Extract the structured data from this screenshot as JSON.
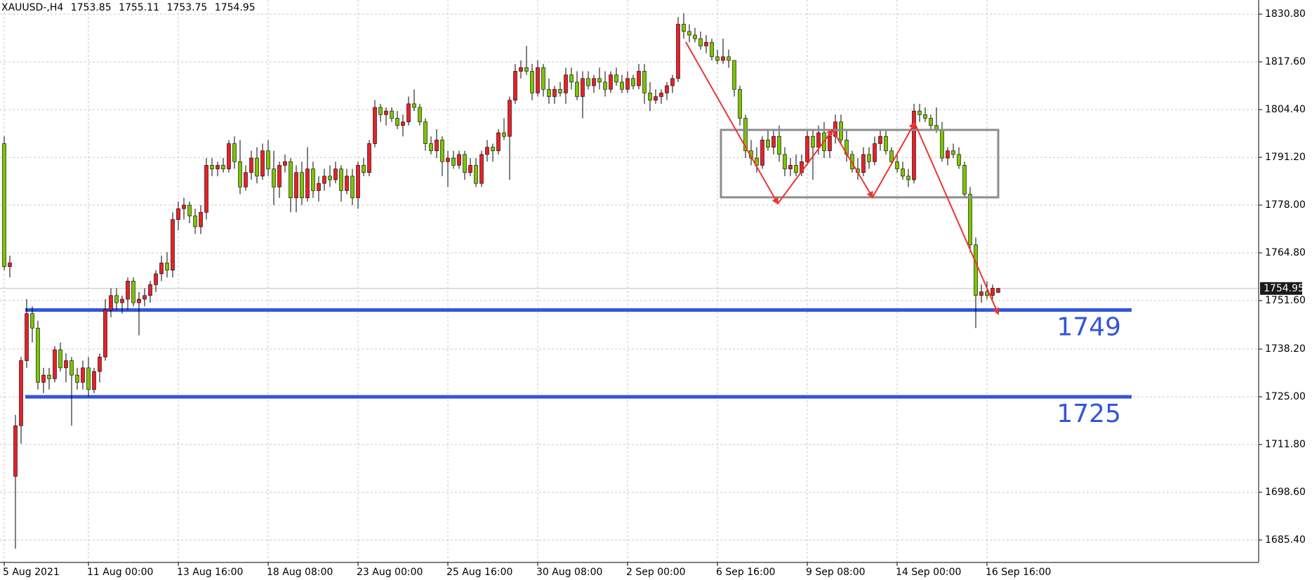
{
  "chart_data": {
    "type": "candlestick",
    "symbol": "XAUUSD-,H4",
    "up_color": "#e8202a",
    "down_color": "#7cc400",
    "level_color": "#3355dd",
    "grid": true,
    "ylim": [
      1679.2,
      1834.7
    ],
    "yticks": [
      {
        "value": 1830.8,
        "label": "1830.80"
      },
      {
        "value": 1817.6,
        "label": "1817.60"
      },
      {
        "value": 1804.4,
        "label": "1804.40"
      },
      {
        "value": 1791.2,
        "label": "1791.20"
      },
      {
        "value": 1778,
        "label": "1778.00"
      },
      {
        "value": 1764.8,
        "label": "1764.80"
      },
      {
        "value": 1751.6,
        "label": "1751.60"
      },
      {
        "value": 1738.2,
        "label": "1738.20"
      },
      {
        "value": 1725,
        "label": "1725.00"
      },
      {
        "value": 1711.8,
        "label": "1711.80"
      },
      {
        "value": 1698.6,
        "label": "1698.60"
      },
      {
        "value": 1685.4,
        "label": "1685.40"
      }
    ],
    "levels": [
      1749,
      1725
    ],
    "categories": [
      "5 Aug 2021",
      null,
      null,
      null,
      null,
      null,
      null,
      null,
      null,
      null,
      null,
      null,
      null,
      null,
      null,
      "11 Aug 00:00",
      null,
      null,
      null,
      null,
      null,
      null,
      null,
      null,
      null,
      null,
      null,
      null,
      null,
      null,
      null,
      "13 Aug 16:00",
      null,
      null,
      null,
      null,
      null,
      null,
      null,
      null,
      null,
      null,
      null,
      null,
      null,
      null,
      null,
      "18 Aug 08:00",
      null,
      null,
      null,
      null,
      null,
      null,
      null,
      null,
      null,
      null,
      null,
      null,
      null,
      null,
      null,
      "23 Aug 00:00",
      null,
      null,
      null,
      null,
      null,
      null,
      null,
      null,
      null,
      null,
      null,
      null,
      null,
      null,
      null,
      "25 Aug 16:00",
      null,
      null,
      null,
      null,
      null,
      null,
      null,
      null,
      null,
      null,
      null,
      null,
      null,
      null,
      null,
      "30 Aug 08:00",
      null,
      null,
      null,
      null,
      null,
      null,
      null,
      null,
      null,
      null,
      null,
      null,
      null,
      null,
      null,
      "2 Sep 00:00",
      null,
      null,
      null,
      null,
      null,
      null,
      null,
      null,
      null,
      null,
      null,
      null,
      null,
      null,
      null,
      "6 Sep 16:00",
      null,
      null,
      null,
      null,
      null,
      null,
      null,
      null,
      null,
      null,
      null,
      null,
      null,
      null,
      null,
      "9 Sep 08:00",
      null,
      null,
      null,
      null,
      null,
      null,
      null,
      null,
      null,
      null,
      null,
      null,
      null,
      null,
      null,
      "14 Sep 00:00",
      null,
      null,
      null,
      null,
      null,
      null,
      null,
      null,
      null,
      null,
      null,
      null,
      null,
      null,
      null,
      "16 Sep 16:00",
      null,
      null
    ],
    "ohlc": [
      [
        1795,
        1797,
        1760,
        1761
      ],
      [
        1761,
        1764,
        1758,
        1762
      ],
      [
        1703,
        1720,
        1683,
        1717
      ],
      [
        1717,
        1736,
        1712,
        1735
      ],
      [
        1735,
        1752,
        1733,
        1748
      ],
      [
        1748,
        1750,
        1740,
        1744
      ],
      [
        1744,
        1746,
        1727,
        1729
      ],
      [
        1729,
        1733,
        1726,
        1731
      ],
      [
        1731,
        1733,
        1727,
        1730
      ],
      [
        1730,
        1739,
        1729,
        1738
      ],
      [
        1738,
        1740,
        1732,
        1733
      ],
      [
        1733,
        1737,
        1729,
        1735
      ],
      [
        1735,
        1736,
        1717,
        1731
      ],
      [
        1731,
        1733,
        1727,
        1729
      ],
      [
        1729,
        1735,
        1727,
        1733
      ],
      [
        1733,
        1736,
        1725,
        1727
      ],
      [
        1727,
        1733,
        1726,
        1732
      ],
      [
        1732,
        1737,
        1729,
        1736
      ],
      [
        1736,
        1752,
        1735,
        1749
      ],
      [
        1749,
        1755,
        1747,
        1753
      ],
      [
        1753,
        1755,
        1749,
        1751
      ],
      [
        1751,
        1753,
        1748,
        1752
      ],
      [
        1752,
        1758,
        1749,
        1757
      ],
      [
        1757,
        1758,
        1750,
        1751
      ],
      [
        1751,
        1754,
        1742,
        1752
      ],
      [
        1752,
        1755,
        1750,
        1753
      ],
      [
        1753,
        1757,
        1751,
        1756
      ],
      [
        1756,
        1760,
        1754,
        1759
      ],
      [
        1759,
        1764,
        1757,
        1762
      ],
      [
        1762,
        1765,
        1758,
        1760
      ],
      [
        1760,
        1776,
        1758,
        1774
      ],
      [
        1774,
        1779,
        1771,
        1777
      ],
      [
        1777,
        1780,
        1774,
        1778
      ],
      [
        1778,
        1779,
        1773,
        1775
      ],
      [
        1775,
        1777,
        1770,
        1772
      ],
      [
        1772,
        1778,
        1770,
        1776
      ],
      [
        1776,
        1791,
        1774,
        1789
      ],
      [
        1789,
        1791,
        1786,
        1788
      ],
      [
        1788,
        1790,
        1786,
        1789
      ],
      [
        1789,
        1791,
        1787,
        1788
      ],
      [
        1788,
        1796,
        1787,
        1795
      ],
      [
        1795,
        1797,
        1788,
        1790
      ],
      [
        1790,
        1796,
        1781,
        1783
      ],
      [
        1783,
        1789,
        1782,
        1787
      ],
      [
        1787,
        1793,
        1785,
        1791
      ],
      [
        1791,
        1794,
        1784,
        1786
      ],
      [
        1786,
        1795,
        1785,
        1793
      ],
      [
        1793,
        1796,
        1786,
        1788
      ],
      [
        1788,
        1793,
        1778,
        1783
      ],
      [
        1783,
        1790,
        1780,
        1789
      ],
      [
        1789,
        1792,
        1787,
        1790
      ],
      [
        1790,
        1791,
        1776,
        1780
      ],
      [
        1780,
        1789,
        1776,
        1787
      ],
      [
        1787,
        1790,
        1778,
        1780
      ],
      [
        1780,
        1794,
        1779,
        1788
      ],
      [
        1788,
        1790,
        1780,
        1782
      ],
      [
        1782,
        1786,
        1779,
        1784
      ],
      [
        1784,
        1788,
        1782,
        1786
      ],
      [
        1786,
        1789,
        1783,
        1785
      ],
      [
        1785,
        1790,
        1784,
        1788
      ],
      [
        1788,
        1789,
        1779,
        1782
      ],
      [
        1782,
        1788,
        1781,
        1786
      ],
      [
        1786,
        1788,
        1778,
        1780
      ],
      [
        1780,
        1790,
        1777,
        1789
      ],
      [
        1789,
        1791,
        1786,
        1787
      ],
      [
        1787,
        1796,
        1786,
        1795
      ],
      [
        1795,
        1807,
        1794,
        1805
      ],
      [
        1805,
        1806,
        1801,
        1803
      ],
      [
        1803,
        1805,
        1800,
        1804
      ],
      [
        1804,
        1805,
        1801,
        1802
      ],
      [
        1802,
        1804,
        1799,
        1800
      ],
      [
        1800,
        1803,
        1797,
        1801
      ],
      [
        1801,
        1808,
        1800,
        1806
      ],
      [
        1806,
        1810,
        1804,
        1805
      ],
      [
        1805,
        1806,
        1800,
        1801
      ],
      [
        1801,
        1802,
        1793,
        1795
      ],
      [
        1795,
        1797,
        1792,
        1793
      ],
      [
        1793,
        1799,
        1791,
        1796
      ],
      [
        1796,
        1797,
        1786,
        1790
      ],
      [
        1790,
        1793,
        1783,
        1791
      ],
      [
        1791,
        1793,
        1788,
        1789
      ],
      [
        1789,
        1793,
        1788,
        1792
      ],
      [
        1792,
        1793,
        1785,
        1787
      ],
      [
        1787,
        1791,
        1786,
        1789
      ],
      [
        1789,
        1791,
        1783,
        1784
      ],
      [
        1784,
        1793,
        1783,
        1792
      ],
      [
        1792,
        1796,
        1790,
        1794
      ],
      [
        1794,
        1795,
        1790,
        1793
      ],
      [
        1793,
        1799,
        1792,
        1798
      ],
      [
        1798,
        1802,
        1796,
        1797
      ],
      [
        1797,
        1808,
        1785,
        1807
      ],
      [
        1807,
        1817,
        1806,
        1815
      ],
      [
        1815,
        1818,
        1813,
        1816
      ],
      [
        1816,
        1822,
        1814,
        1815
      ],
      [
        1815,
        1817,
        1807,
        1809
      ],
      [
        1809,
        1818,
        1808,
        1816
      ],
      [
        1816,
        1817,
        1808,
        1810
      ],
      [
        1810,
        1813,
        1806,
        1808
      ],
      [
        1808,
        1811,
        1806,
        1810
      ],
      [
        1810,
        1812,
        1808,
        1809
      ],
      [
        1809,
        1816,
        1806,
        1814
      ],
      [
        1814,
        1816,
        1810,
        1812
      ],
      [
        1812,
        1815,
        1807,
        1808
      ],
      [
        1808,
        1815,
        1802,
        1813
      ],
      [
        1813,
        1815,
        1810,
        1811
      ],
      [
        1811,
        1814,
        1809,
        1813
      ],
      [
        1813,
        1816,
        1810,
        1812
      ],
      [
        1812,
        1815,
        1808,
        1810
      ],
      [
        1810,
        1815,
        1809,
        1814
      ],
      [
        1814,
        1816,
        1811,
        1812
      ],
      [
        1812,
        1814,
        1809,
        1810
      ],
      [
        1810,
        1815,
        1809,
        1813
      ],
      [
        1813,
        1814,
        1810,
        1811
      ],
      [
        1811,
        1817,
        1810,
        1815
      ],
      [
        1815,
        1817,
        1806,
        1809
      ],
      [
        1809,
        1812,
        1804,
        1807
      ],
      [
        1807,
        1810,
        1806,
        1808
      ],
      [
        1808,
        1810,
        1806,
        1809
      ],
      [
        1809,
        1812,
        1807,
        1811
      ],
      [
        1811,
        1814,
        1809,
        1813
      ],
      [
        1813,
        1830,
        1812,
        1828
      ],
      [
        1828,
        1831,
        1824,
        1826
      ],
      [
        1826,
        1828,
        1823,
        1825
      ],
      [
        1825,
        1827,
        1823,
        1824
      ],
      [
        1824,
        1826,
        1821,
        1822
      ],
      [
        1822,
        1825,
        1820,
        1823
      ],
      [
        1823,
        1824,
        1818,
        1819
      ],
      [
        1819,
        1821,
        1817,
        1818
      ],
      [
        1818,
        1824,
        1817,
        1819
      ],
      [
        1819,
        1821,
        1816,
        1818
      ],
      [
        1818,
        1818,
        1808,
        1810
      ],
      [
        1810,
        1811,
        1800,
        1802
      ],
      [
        1802,
        1803,
        1791,
        1793
      ],
      [
        1793,
        1796,
        1789,
        1791
      ],
      [
        1791,
        1794,
        1787,
        1789
      ],
      [
        1789,
        1797,
        1788,
        1796
      ],
      [
        1796,
        1799,
        1793,
        1794
      ],
      [
        1794,
        1799,
        1792,
        1797
      ],
      [
        1797,
        1800,
        1790,
        1792
      ],
      [
        1792,
        1794,
        1786,
        1788
      ],
      [
        1788,
        1791,
        1786,
        1789
      ],
      [
        1789,
        1792,
        1786,
        1787
      ],
      [
        1787,
        1792,
        1786,
        1790
      ],
      [
        1790,
        1799,
        1789,
        1797
      ],
      [
        1797,
        1799,
        1785,
        1794
      ],
      [
        1794,
        1800,
        1792,
        1798
      ],
      [
        1798,
        1801,
        1791,
        1793
      ],
      [
        1793,
        1799,
        1791,
        1797
      ],
      [
        1797,
        1803,
        1795,
        1801
      ],
      [
        1801,
        1803,
        1795,
        1796
      ],
      [
        1796,
        1799,
        1790,
        1792
      ],
      [
        1792,
        1793,
        1787,
        1788
      ],
      [
        1788,
        1791,
        1785,
        1787
      ],
      [
        1787,
        1794,
        1786,
        1792
      ],
      [
        1792,
        1794,
        1788,
        1790
      ],
      [
        1790,
        1797,
        1789,
        1795
      ],
      [
        1795,
        1799,
        1793,
        1797
      ],
      [
        1797,
        1799,
        1792,
        1793
      ],
      [
        1793,
        1794,
        1789,
        1790
      ],
      [
        1790,
        1792,
        1787,
        1788
      ],
      [
        1788,
        1790,
        1785,
        1786
      ],
      [
        1786,
        1788,
        1783,
        1785
      ],
      [
        1785,
        1806,
        1784,
        1804
      ],
      [
        1804,
        1806,
        1801,
        1803
      ],
      [
        1803,
        1805,
        1801,
        1802
      ],
      [
        1802,
        1803,
        1799,
        1800
      ],
      [
        1800,
        1805,
        1798,
        1799
      ],
      [
        1799,
        1801,
        1790,
        1791
      ],
      [
        1791,
        1794,
        1789,
        1793
      ],
      [
        1793,
        1795,
        1791,
        1792
      ],
      [
        1792,
        1794,
        1788,
        1789
      ],
      [
        1789,
        1790,
        1780,
        1781
      ],
      [
        1781,
        1783,
        1765,
        1767
      ],
      [
        1767,
        1769,
        1744,
        1753
      ],
      [
        1753,
        1756,
        1751,
        1754
      ],
      [
        1754,
        1757,
        1752,
        1753
      ],
      [
        1753,
        1756,
        1752,
        1755
      ],
      [
        1753.85,
        1755.11,
        1753.75,
        1754.95
      ]
    ]
  }
}
